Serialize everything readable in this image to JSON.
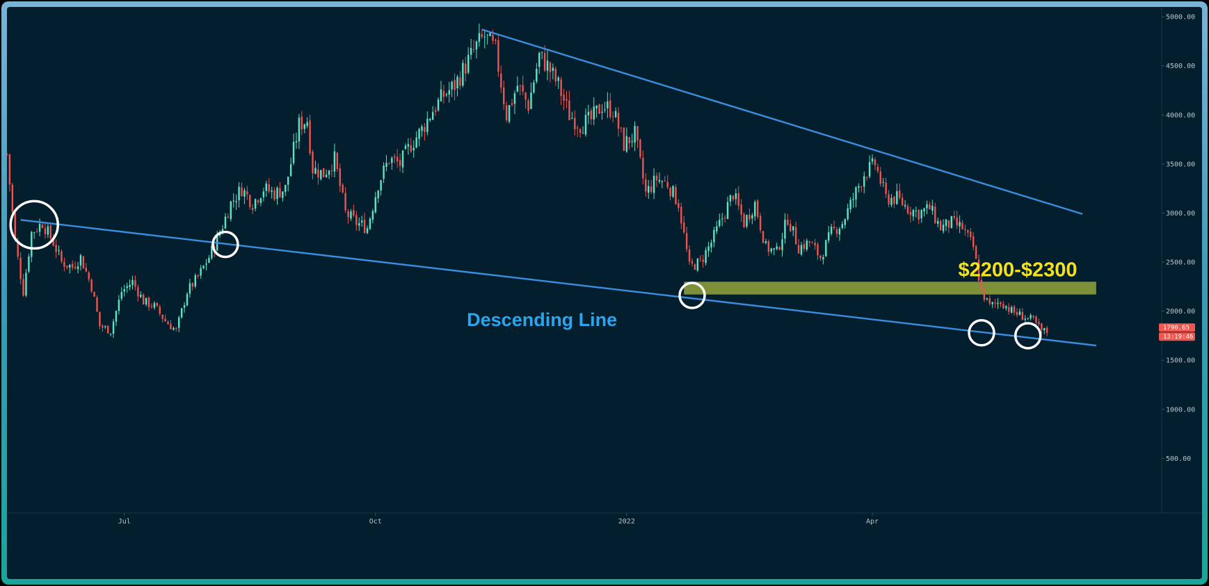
{
  "chart_data": {
    "type": "candlestick",
    "title": "",
    "xlabel": "",
    "ylabel": "",
    "ylim": [
      0,
      5100
    ],
    "y_ticks": [
      "5000.00",
      "4500.00",
      "4000.00",
      "3500.00",
      "3000.00",
      "2500.00",
      "2000.00",
      "1500.00",
      "1000.00",
      "500.00"
    ],
    "y_tick_values": [
      5000,
      4500,
      4000,
      3500,
      3000,
      2500,
      2000,
      1500,
      1000,
      500
    ],
    "x_ticks": [
      "Jul",
      "Oct",
      "2022",
      "Apr"
    ],
    "x_tick_dates": [
      "2021-07-01",
      "2021-10-01",
      "2022-01-01",
      "2022-04-01"
    ],
    "x_range": [
      "2021-05-19",
      "2022-07-16"
    ],
    "price_path": [
      [
        "2021-05-19",
        3600
      ],
      [
        "2021-05-22",
        2700
      ],
      [
        "2021-05-25",
        2200
      ],
      [
        "2021-05-28",
        2800
      ],
      [
        "2021-06-01",
        2900
      ],
      [
        "2021-06-05",
        2700
      ],
      [
        "2021-06-08",
        2500
      ],
      [
        "2021-06-12",
        2450
      ],
      [
        "2021-06-15",
        2550
      ],
      [
        "2021-06-19",
        2250
      ],
      [
        "2021-06-22",
        1850
      ],
      [
        "2021-06-26",
        1800
      ],
      [
        "2021-06-30",
        2200
      ],
      [
        "2021-07-04",
        2300
      ],
      [
        "2021-07-08",
        2100
      ],
      [
        "2021-07-12",
        2050
      ],
      [
        "2021-07-16",
        1900
      ],
      [
        "2021-07-20",
        1800
      ],
      [
        "2021-07-24",
        2200
      ],
      [
        "2021-07-28",
        2350
      ],
      [
        "2021-08-01",
        2550
      ],
      [
        "2021-08-05",
        2800
      ],
      [
        "2021-08-09",
        3100
      ],
      [
        "2021-08-13",
        3250
      ],
      [
        "2021-08-17",
        3100
      ],
      [
        "2021-08-21",
        3250
      ],
      [
        "2021-08-25",
        3200
      ],
      [
        "2021-08-29",
        3250
      ],
      [
        "2021-09-03",
        3900
      ],
      [
        "2021-09-06",
        3950
      ],
      [
        "2021-09-08",
        3450
      ],
      [
        "2021-09-12",
        3400
      ],
      [
        "2021-09-16",
        3550
      ],
      [
        "2021-09-20",
        3000
      ],
      [
        "2021-09-24",
        2900
      ],
      [
        "2021-09-28",
        2850
      ],
      [
        "2021-10-02",
        3300
      ],
      [
        "2021-10-06",
        3550
      ],
      [
        "2021-10-10",
        3500
      ],
      [
        "2021-10-14",
        3700
      ],
      [
        "2021-10-18",
        3850
      ],
      [
        "2021-10-22",
        4050
      ],
      [
        "2021-10-26",
        4200
      ],
      [
        "2021-10-30",
        4300
      ],
      [
        "2021-11-03",
        4500
      ],
      [
        "2021-11-07",
        4700
      ],
      [
        "2021-11-10",
        4800
      ],
      [
        "2021-11-14",
        4650
      ],
      [
        "2021-11-18",
        4000
      ],
      [
        "2021-11-22",
        4300
      ],
      [
        "2021-11-26",
        4100
      ],
      [
        "2021-11-30",
        4600
      ],
      [
        "2021-12-03",
        4500
      ],
      [
        "2021-12-07",
        4300
      ],
      [
        "2021-12-11",
        4000
      ],
      [
        "2021-12-15",
        3900
      ],
      [
        "2021-12-19",
        3950
      ],
      [
        "2021-12-23",
        4100
      ],
      [
        "2021-12-27",
        4050
      ],
      [
        "2021-12-31",
        3700
      ],
      [
        "2022-01-04",
        3800
      ],
      [
        "2022-01-08",
        3200
      ],
      [
        "2022-01-12",
        3350
      ],
      [
        "2022-01-16",
        3300
      ],
      [
        "2022-01-20",
        3100
      ],
      [
        "2022-01-24",
        2450
      ],
      [
        "2022-01-28",
        2500
      ],
      [
        "2022-02-01",
        2700
      ],
      [
        "2022-02-05",
        2950
      ],
      [
        "2022-02-09",
        3200
      ],
      [
        "2022-02-13",
        2900
      ],
      [
        "2022-02-17",
        3100
      ],
      [
        "2022-02-21",
        2650
      ],
      [
        "2022-02-25",
        2600
      ],
      [
        "2022-03-01",
        2950
      ],
      [
        "2022-03-05",
        2650
      ],
      [
        "2022-03-09",
        2700
      ],
      [
        "2022-03-13",
        2550
      ],
      [
        "2022-03-17",
        2800
      ],
      [
        "2022-03-21",
        2900
      ],
      [
        "2022-03-25",
        3150
      ],
      [
        "2022-03-29",
        3400
      ],
      [
        "2022-04-02",
        3500
      ],
      [
        "2022-04-06",
        3150
      ],
      [
        "2022-04-10",
        3150
      ],
      [
        "2022-04-14",
        3050
      ],
      [
        "2022-04-18",
        3000
      ],
      [
        "2022-04-22",
        3050
      ],
      [
        "2022-04-26",
        2850
      ],
      [
        "2022-04-30",
        2900
      ],
      [
        "2022-05-04",
        2850
      ],
      [
        "2022-05-08",
        2650
      ],
      [
        "2022-05-11",
        2200
      ],
      [
        "2022-05-14",
        2050
      ],
      [
        "2022-05-18",
        2100
      ],
      [
        "2022-05-22",
        2000
      ],
      [
        "2022-05-26",
        1950
      ],
      [
        "2022-05-30",
        1900
      ],
      [
        "2022-06-02",
        1800
      ],
      [
        "2022-06-04",
        1790
      ]
    ],
    "trendlines": [
      {
        "name": "upper",
        "from": [
          "2021-11-09",
          4870
        ],
        "to": [
          "2022-06-17",
          2990
        ]
      },
      {
        "name": "lower",
        "from": [
          "2021-05-24",
          2930
        ],
        "to": [
          "2022-06-22",
          1650
        ]
      }
    ],
    "zone": {
      "label": "$2200-$2300",
      "low": 2170,
      "high": 2300,
      "from": "2022-01-22",
      "to": "2022-06-22",
      "color": "#8ea33a"
    },
    "touch_points": [
      {
        "date": "2021-05-29",
        "price": 2880,
        "size": "large"
      },
      {
        "date": "2021-08-07",
        "price": 2680
      },
      {
        "date": "2022-01-25",
        "price": 2160
      },
      {
        "date": "2022-05-11",
        "price": 1780
      },
      {
        "date": "2022-05-28",
        "price": 1750
      }
    ],
    "annotation": {
      "text": "Descending Line",
      "date": "2021-12-01",
      "price": 1850,
      "color": "#2aa5ee"
    },
    "last_price": {
      "value": "1790.65",
      "countdown": "13:19:46",
      "price": 1790.65,
      "color": "#f0574e"
    },
    "colors": {
      "up": "#5fe3c4",
      "down": "#ef5350",
      "trendline": "#3a8fe0",
      "background": "#031e2c",
      "circle": "#ffffff"
    }
  }
}
